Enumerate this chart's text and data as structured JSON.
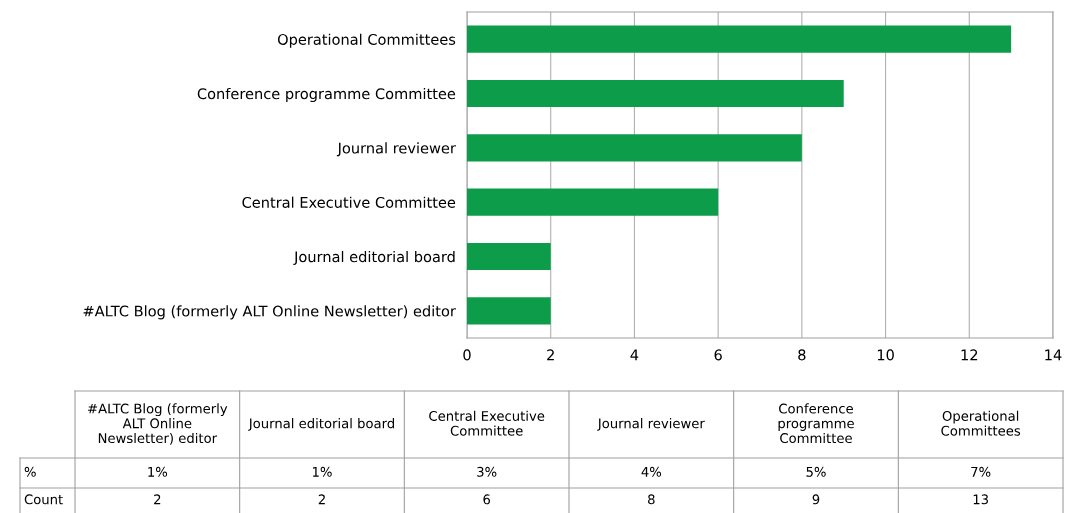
{
  "chart_data": {
    "type": "bar",
    "orientation": "horizontal",
    "categories": [
      "Operational Committees",
      "Conference programme Committee",
      "Journal reviewer",
      "Central Executive Committee",
      "Journal editorial board",
      "#ALTC Blog (formerly ALT Online Newsletter) editor"
    ],
    "values": [
      13,
      9,
      8,
      6,
      2,
      2
    ],
    "color": "#0c9c4a",
    "xlim": [
      0,
      14
    ],
    "xticks": [
      0,
      2,
      4,
      6,
      8,
      10,
      12,
      14
    ],
    "grid": "x",
    "legend": false,
    "annotations": [
      "%",
      "Count",
      "1%",
      "1%",
      "3%",
      "4%",
      "5%",
      "7%",
      "2",
      "2",
      "6",
      "8",
      "9",
      "13"
    ]
  }
}
